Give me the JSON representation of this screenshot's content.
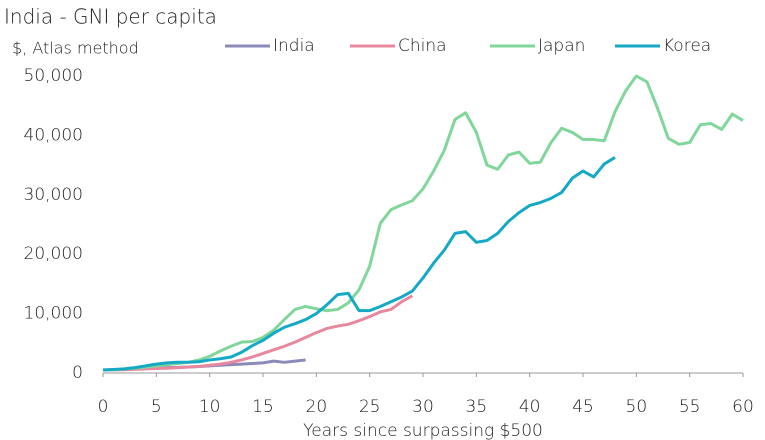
{
  "chart_data": {
    "type": "line",
    "title": "India - GNI per capita",
    "subtitle": "$, Atlas method",
    "x_label": "Years since surpassing $500",
    "x": [
      0,
      1,
      2,
      3,
      4,
      5,
      6,
      7,
      8,
      9,
      10,
      11,
      12,
      13,
      14,
      15,
      16,
      17,
      18,
      19,
      20,
      21,
      22,
      23,
      24,
      25,
      26,
      27,
      28,
      29,
      30,
      31,
      32,
      33,
      34,
      35,
      36,
      37,
      38,
      39,
      40,
      41,
      42,
      43,
      44,
      45,
      46,
      47,
      48,
      49,
      50,
      51,
      52,
      53,
      54,
      55,
      56,
      57,
      58,
      59,
      60
    ],
    "series": [
      {
        "name": "India",
        "color": "#8b8ab9",
        "values": [
          500,
          550,
          600,
          700,
          800,
          850,
          900,
          950,
          1000,
          1100,
          1200,
          1300,
          1400,
          1500,
          1600,
          1700,
          2000,
          1800,
          2000,
          2200,
          null,
          null,
          null,
          null,
          null,
          null,
          null,
          null,
          null,
          null,
          null,
          null,
          null,
          null,
          null,
          null,
          null,
          null,
          null,
          null,
          null,
          null,
          null,
          null,
          null,
          null,
          null,
          null,
          null,
          null,
          null,
          null,
          null,
          null,
          null,
          null,
          null,
          null,
          null,
          null,
          null
        ]
      },
      {
        "name": "China",
        "color": "#e8889f",
        "values": [
          500,
          520,
          550,
          600,
          700,
          750,
          800,
          900,
          1000,
          1100,
          1300,
          1500,
          1800,
          2200,
          2700,
          3300,
          3900,
          4500,
          5200,
          6000,
          6800,
          7500,
          7900,
          8200,
          8800,
          9500,
          10300,
          10700,
          12000,
          13000,
          null,
          null,
          null,
          null,
          null,
          null,
          null,
          null,
          null,
          null,
          null,
          null,
          null,
          null,
          null,
          null,
          null,
          null,
          null,
          null,
          null,
          null,
          null,
          null,
          null,
          null,
          null,
          null,
          null,
          null,
          null
        ]
      },
      {
        "name": "Japan",
        "color": "#80d69b",
        "values": [
          500,
          550,
          650,
          800,
          1000,
          1200,
          1400,
          1600,
          1800,
          2200,
          2800,
          3700,
          4500,
          5200,
          5300,
          6000,
          7200,
          9000,
          10700,
          11200,
          10800,
          10500,
          10700,
          11800,
          14000,
          18000,
          25200,
          27500,
          28300,
          29000,
          31000,
          34000,
          37500,
          42700,
          43800,
          40500,
          35000,
          34300,
          36700,
          37200,
          35300,
          35500,
          38800,
          41200,
          40500,
          39300,
          39300,
          39100,
          44000,
          47500,
          50000,
          49000,
          44500,
          39500,
          38500,
          38800,
          41800,
          42000,
          41000,
          43600,
          42500
        ]
      },
      {
        "name": "Korea",
        "color": "#15a9c6",
        "values": [
          500,
          600,
          700,
          900,
          1200,
          1500,
          1700,
          1800,
          1800,
          1900,
          2200,
          2400,
          2700,
          3500,
          4600,
          5500,
          6700,
          7700,
          8300,
          9000,
          10000,
          11500,
          13200,
          13400,
          10500,
          10500,
          11200,
          12000,
          12800,
          13800,
          16000,
          18500,
          20700,
          23500,
          23800,
          22000,
          22300,
          23500,
          25500,
          27000,
          28200,
          28700,
          29400,
          30400,
          32800,
          34000,
          33000,
          35200,
          36300,
          null,
          null,
          null,
          null,
          null,
          null,
          null,
          null,
          null,
          null,
          null,
          null
        ]
      }
    ],
    "xlim": [
      0,
      60
    ],
    "xticks": [
      0,
      5,
      10,
      15,
      20,
      25,
      30,
      35,
      40,
      45,
      50,
      55,
      60
    ],
    "ylim": [
      0,
      50000
    ],
    "yticks": [
      0,
      {
        "value": 10000,
        "label": "10,000"
      },
      {
        "value": 20000,
        "label": "20,000"
      },
      {
        "value": 30000,
        "label": "30,000"
      },
      {
        "value": 40000,
        "label": "40,000"
      },
      {
        "value": 50000,
        "label": "50,000"
      }
    ],
    "legend": "top"
  }
}
